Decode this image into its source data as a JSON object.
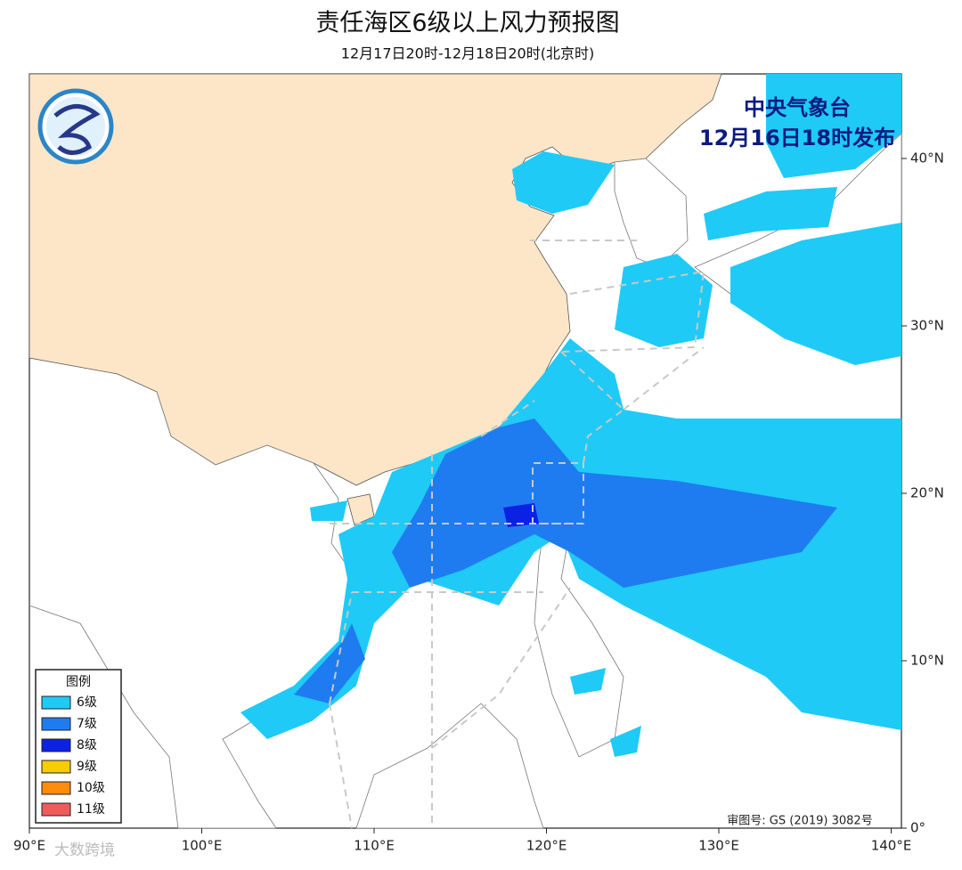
{
  "header": {
    "title": "责任海区6级以上风力预报图",
    "subtitle": "12月17日20时-12月18日20时(北京时)"
  },
  "issuer": {
    "name": "中央气象台",
    "time": "12月16日18时发布"
  },
  "legend": {
    "title": "图例",
    "items": [
      {
        "label": "6级",
        "color": "#1fcaf6"
      },
      {
        "label": "7级",
        "color": "#1e7cf0"
      },
      {
        "label": "8级",
        "color": "#0b22e4"
      },
      {
        "label": "9级",
        "color": "#f7cc00"
      },
      {
        "label": "10级",
        "color": "#ff8c0a"
      },
      {
        "label": "11级",
        "color": "#f05a5a"
      }
    ]
  },
  "axes": {
    "lat_labels": [
      "40°N",
      "30°N",
      "20°N",
      "10°N",
      "0°"
    ],
    "lon_labels": [
      "90°E",
      "100°E",
      "110°E",
      "120°E",
      "130°E",
      "140°E"
    ]
  },
  "map_approval": "审图号: GS (2019) 3082号",
  "watermark": "大数跨境"
}
